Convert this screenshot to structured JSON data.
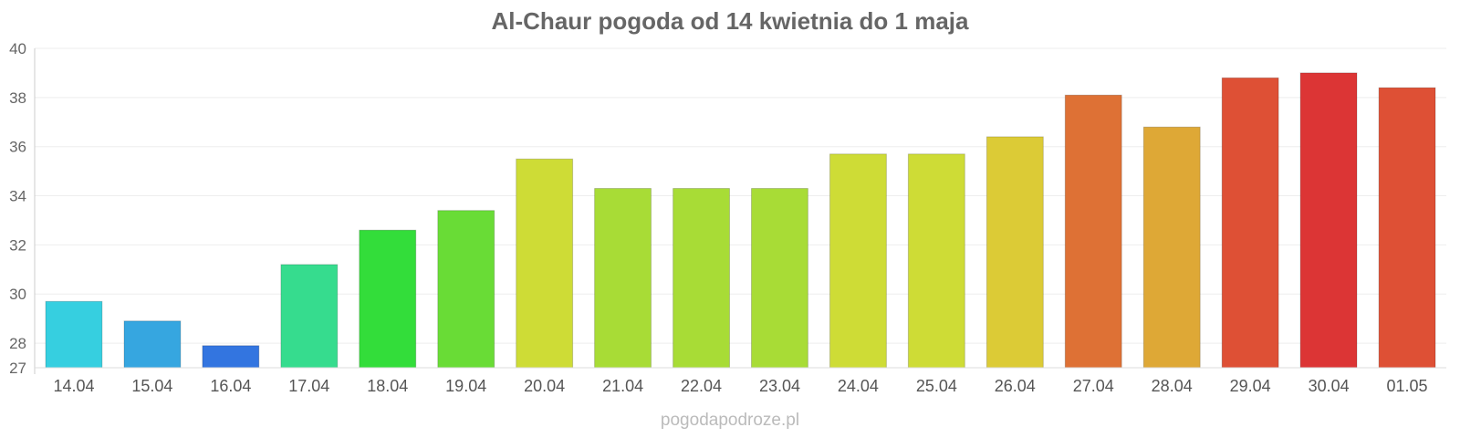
{
  "chart_data": {
    "type": "bar",
    "title": "Al-Chaur pogoda od 14 kwietnia do 1 maja",
    "xlabel": "",
    "ylabel": "",
    "ylim": [
      27,
      40
    ],
    "yticks": [
      27,
      28,
      30,
      32,
      34,
      36,
      38,
      40
    ],
    "grid": true,
    "categories": [
      "14.04",
      "15.04",
      "16.04",
      "17.04",
      "18.04",
      "19.04",
      "20.04",
      "21.04",
      "22.04",
      "23.04",
      "24.04",
      "25.04",
      "26.04",
      "27.04",
      "28.04",
      "29.04",
      "30.04",
      "01.05"
    ],
    "values": [
      29.7,
      28.9,
      27.9,
      31.2,
      32.6,
      33.4,
      35.5,
      34.3,
      34.3,
      34.3,
      35.7,
      35.7,
      36.4,
      38.1,
      36.8,
      38.8,
      39.0,
      38.4
    ],
    "colors": [
      "#36cfe0",
      "#36a6e0",
      "#3375e0",
      "#36dc8e",
      "#33dd3a",
      "#69dc36",
      "#cedc36",
      "#a8dc36",
      "#a8dc36",
      "#a8dc36",
      "#cedc36",
      "#cedc36",
      "#dccb36",
      "#de7135",
      "#dea836",
      "#de5035",
      "#dc3535",
      "#de5035"
    ]
  },
  "footer": {
    "credit": "pogodapodroze.pl"
  }
}
